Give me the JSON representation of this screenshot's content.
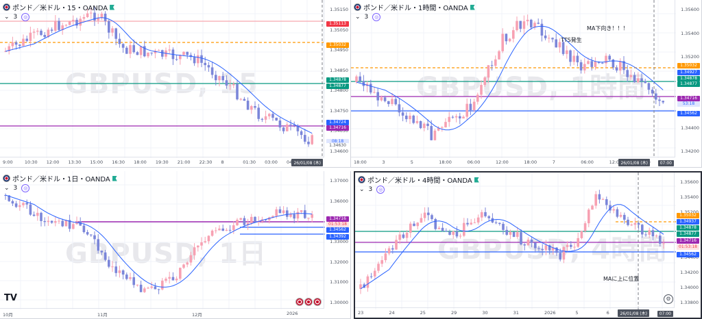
{
  "panels": [
    {
      "id": "p15",
      "title": "ポンド／米ドル・15・OANDA",
      "sub_count": "3",
      "watermark": "GBPUSD, 15",
      "yticks": [
        "1.35150",
        "1.35050",
        "1.34950",
        "1.34850",
        "1.34800",
        "1.34750",
        "1.34650",
        "1.34600"
      ],
      "xticks": [
        "9:00",
        "10:30",
        "12:00",
        "13:30",
        "15:00",
        "16:30",
        "18:00",
        "19:30",
        "21:00",
        "22:30",
        "8",
        "01:30",
        "03:00",
        "04:30"
      ],
      "date_badge": "26/01/08 (木)",
      "tags": [
        {
          "text": "1.35113",
          "color": "#f23645",
          "bg": "#f23645"
        },
        {
          "text": "1.35032",
          "color": "#ff9800",
          "bg": "#ff9800"
        },
        {
          "text": "1.34878",
          "color": "#089981",
          "bg": "#089981"
        },
        {
          "text": "1.34877",
          "color": "#089981",
          "bg": "#089981"
        },
        {
          "text": "1.34724",
          "color": "#2962ff",
          "bg": "#2962ff"
        },
        {
          "text": "1.34716",
          "color": "#9c27b0",
          "bg": "#9c27b0"
        },
        {
          "text": "08:18",
          "color": "#2962ff",
          "bg": "#dfe6ff"
        },
        {
          "text": "1.34630",
          "color": "#4c525e",
          "bg": "#fff"
        }
      ]
    },
    {
      "id": "p1h",
      "title": "ポンド／米ドル・1時間・OANDA",
      "sub_count": "3",
      "watermark": "GBPUSD, 1時間",
      "yticks": [
        "1.35600",
        "1.35400",
        "1.35200",
        "1.34800",
        "1.34600",
        "1.34400",
        "1.34200"
      ],
      "xticks": [
        "18:00",
        "3",
        "5",
        "18:00",
        "06:00",
        "12:00",
        "18:00",
        "7",
        "06:00",
        "12:00",
        "18:00"
      ],
      "date_badge": "26/01/08 (木)",
      "time_badge": "07:00",
      "annotations": [
        "MA下向き！！！",
        "TTS発生"
      ],
      "tags": [
        {
          "text": "1.35032",
          "color": "#ff9800",
          "bg": "#ff9800"
        },
        {
          "text": "1.34927",
          "color": "#2962ff",
          "bg": "#2962ff"
        },
        {
          "text": "1.34878",
          "color": "#089981",
          "bg": "#089981"
        },
        {
          "text": "1.34877",
          "color": "#089981",
          "bg": "#089981"
        },
        {
          "text": "1.34716",
          "color": "#9c27b0",
          "bg": "#9c27b0"
        },
        {
          "text": "53:18",
          "color": "#2962ff",
          "bg": "#dfe6ff"
        },
        {
          "text": "1.34562",
          "color": "#2962ff",
          "bg": "#2962ff"
        }
      ]
    },
    {
      "id": "p1d",
      "title": "ポンド／米ドル・1日・OANDA",
      "sub_count": "3",
      "watermark": "GBPUSD, 1日",
      "yticks": [
        "1.37000",
        "1.36000",
        "1.35000",
        "1.33000",
        "1.32000",
        "1.31000",
        "1.30000"
      ],
      "xticks": [
        "10月",
        "11月",
        "12月",
        "2026"
      ],
      "tags": [
        {
          "text": "1.34716",
          "color": "#9c27b0",
          "bg": "#9c27b0"
        },
        {
          "text": "01:53:18",
          "color": "#f23645",
          "bg": "#fde2e4"
        },
        {
          "text": "1.34562",
          "color": "#2962ff",
          "bg": "#2962ff"
        },
        {
          "text": "1.34392",
          "color": "#2962ff",
          "bg": "#2962ff"
        }
      ]
    },
    {
      "id": "p4h",
      "title": "ポンド／米ドル・4時間・OANDA",
      "sub_count": "3",
      "watermark": "GBPUSD, 4時間",
      "yticks": [
        "1.35600",
        "1.35400",
        "1.35200",
        "1.35000",
        "1.34800",
        "1.34400",
        "1.34200",
        "1.34000",
        "1.33800"
      ],
      "xticks": [
        "23",
        "24",
        "25",
        "29",
        "30",
        "31",
        "2026",
        "5",
        "6",
        "7"
      ],
      "date_badge": "26/01/08 (木)",
      "time_badge": "07:00",
      "annotations": [
        "MAに上に位置"
      ],
      "tags": [
        {
          "text": "1.35032",
          "color": "#ff9800",
          "bg": "#ff9800"
        },
        {
          "text": "1.34937",
          "color": "#2962ff",
          "bg": "#2962ff"
        },
        {
          "text": "1.34878",
          "color": "#089981",
          "bg": "#089981"
        },
        {
          "text": "1.34877",
          "color": "#089981",
          "bg": "#089981"
        },
        {
          "text": "1.34716",
          "color": "#9c27b0",
          "bg": "#9c27b0"
        },
        {
          "text": "01:53:18",
          "color": "#f23645",
          "bg": "#fde2e4"
        },
        {
          "text": "1.34562",
          "color": "#2962ff",
          "bg": "#2962ff"
        }
      ]
    }
  ],
  "colors": {
    "up": "#f7a1b2",
    "down": "#7b86d9",
    "ma": "#2962ff"
  }
}
